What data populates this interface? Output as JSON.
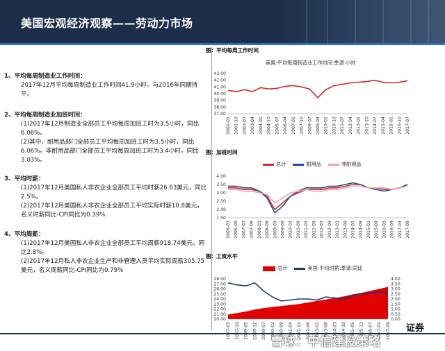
{
  "header": {
    "title": "美国宏观经济观察——劳动力市场"
  },
  "sections": [
    {
      "heading": "1、平均每周制造业工作时间：",
      "paras": [
        "2017年12月平均每周制造业工作时间41.9小时，与2016年同期持平。"
      ]
    },
    {
      "heading": "2、平均每周制造业加班时间：",
      "paras": [
        "(1)2017年12月制造业全部员工平均每周加班工时为3.5小时，同比6.06%。",
        "(2)其中，耐用品部门全部员工平均每周加班工时为3.5小时，同比6.06%。非耐用品部门全部员工平均每周加班工时为3.4小时，同比3.03%。"
      ]
    },
    {
      "heading": "3、平均时薪：",
      "paras": [
        "(1)2017年12月美国私人非农企业全部员工平均时薪26.63美元，同比2.5%。",
        "(2)2017年12月美国私人非农企业全部员工平均实际时薪10.8美元，名义时薪同比-CPI同比为0.39%"
      ]
    },
    {
      "heading": "4、平均周薪：",
      "paras": [
        "(1)2017年12月美国私人非农企业全部员工平均周薪918.74美元，同比2.8%。",
        "(2)2017年12月私人非农企业生产和非管理人员平均实际周薪305.75美元，名义周薪同比-CPI同比为0.79%"
      ]
    }
  ],
  "figures": {
    "fig1_title": "图：平均每周工作时间",
    "fig2_title": "图：加班时间",
    "fig3_title": "图：工资水平"
  },
  "chart_data": [
    {
      "type": "line",
      "title": "美国:平均每周制造业工作时间:季调 小时",
      "x": [
        "2001-01",
        "2001-10",
        "2002-07",
        "2003-04",
        "2004-01",
        "2004-10",
        "2005-07",
        "2006-04",
        "2007-01",
        "2007-10",
        "2008-07",
        "2009-04",
        "2010-01",
        "2010-10",
        "2011-07",
        "2012-04",
        "2013-01",
        "2013-10",
        "2014-07",
        "2015-04",
        "2016-01",
        "2016-10",
        "2017-07"
      ],
      "ylim": [
        37.0,
        43.0
      ],
      "yticks": [
        "37.00",
        "38.00",
        "39.00",
        "40.00",
        "41.00",
        "42.00",
        "43.00"
      ],
      "series": [
        {
          "color": "#d62728",
          "values": [
            40.5,
            40.3,
            40.6,
            40.3,
            40.9,
            40.7,
            40.8,
            41.1,
            41.2,
            41.0,
            40.7,
            39.4,
            40.6,
            41.2,
            41.4,
            41.6,
            41.7,
            41.8,
            42.0,
            41.7,
            41.6,
            41.7,
            41.9
          ]
        }
      ]
    },
    {
      "type": "line",
      "x": [
        "2006-03",
        "2006-09",
        "2007-03",
        "2007-09",
        "2008-03",
        "2008-09",
        "2009-03",
        "2009-09",
        "2010-03",
        "2010-09",
        "2011-03",
        "2011-09",
        "2012-03",
        "2012-09",
        "2013-03",
        "2013-09",
        "2014-03",
        "2014-09",
        "2015-03",
        "2015-09",
        "2016-03",
        "2016-09",
        "2017-03",
        "2017-09"
      ],
      "ylim": [
        1.5,
        4.0
      ],
      "yticks": [
        "1.50",
        "2.00",
        "2.50",
        "3.00",
        "3.50",
        "4.00"
      ],
      "legend": [
        "总计",
        "耐用品",
        "非耐用品"
      ],
      "series": [
        {
          "name": "总计",
          "color": "#d62728",
          "values": [
            3.3,
            3.3,
            3.2,
            3.2,
            3.1,
            2.8,
            2.0,
            2.4,
            2.8,
            3.0,
            3.2,
            3.2,
            3.2,
            3.3,
            3.3,
            3.4,
            3.5,
            3.5,
            3.3,
            3.3,
            3.2,
            3.2,
            3.3,
            3.5
          ]
        },
        {
          "name": "耐用品",
          "color": "#1f4e9c",
          "values": [
            3.4,
            3.4,
            3.3,
            3.3,
            3.1,
            2.7,
            1.8,
            2.2,
            2.8,
            3.1,
            3.3,
            3.3,
            3.3,
            3.4,
            3.4,
            3.5,
            3.6,
            3.5,
            3.3,
            3.2,
            3.1,
            3.2,
            3.3,
            3.5
          ]
        },
        {
          "name": "非耐用品",
          "color": "#f2a3a3",
          "values": [
            3.2,
            3.2,
            3.1,
            3.1,
            3.0,
            2.9,
            2.4,
            2.7,
            3.0,
            3.1,
            3.2,
            3.1,
            3.1,
            3.2,
            3.2,
            3.3,
            3.4,
            3.4,
            3.3,
            3.3,
            3.3,
            3.2,
            3.3,
            3.4
          ]
        }
      ]
    },
    {
      "type": "area",
      "x": [
        "2007-03",
        "2007-10",
        "2008-05",
        "2008-12",
        "2009-07",
        "2010-02",
        "2010-09",
        "2011-04",
        "2011-11",
        "2012-06",
        "2013-01",
        "2013-08",
        "2014-03",
        "2014-10",
        "2015-05",
        "2015-12",
        "2016-07",
        "2017-02",
        "2017-09"
      ],
      "ylim": [
        20.0,
        28.0
      ],
      "yticks": [
        "20.00",
        "21.00",
        "22.00",
        "23.00",
        "24.00",
        "25.00",
        "26.00",
        "27.00",
        "28.00"
      ],
      "y2lim": [
        0.0,
        4.0
      ],
      "y2ticks": [
        "0.00",
        "0.50",
        "1.00",
        "1.50",
        "2.00",
        "2.50",
        "3.00",
        "3.50",
        "4.00"
      ],
      "legend": [
        "总计",
        "美国:平均时薪:季调:同比"
      ],
      "series": [
        {
          "name": "总计",
          "color": "#e00000",
          "axis": "left",
          "values": [
            20.9,
            21.2,
            21.5,
            21.9,
            22.2,
            22.4,
            22.6,
            22.8,
            23.0,
            23.3,
            23.6,
            23.9,
            24.2,
            24.5,
            24.9,
            25.2,
            25.6,
            26.0,
            26.4
          ]
        },
        {
          "name": "美国:平均时薪:季调:同比",
          "color": "#1f3b73",
          "axis": "right",
          "values": [
            3.6,
            3.4,
            3.3,
            3.6,
            2.8,
            2.2,
            1.8,
            1.9,
            2.0,
            2.0,
            1.9,
            2.2,
            2.1,
            2.0,
            2.3,
            2.5,
            2.6,
            2.7,
            2.5
          ]
        }
      ]
    }
  ],
  "footer": {
    "watermark": "雪球：中信建投策略",
    "brand": "证券"
  }
}
